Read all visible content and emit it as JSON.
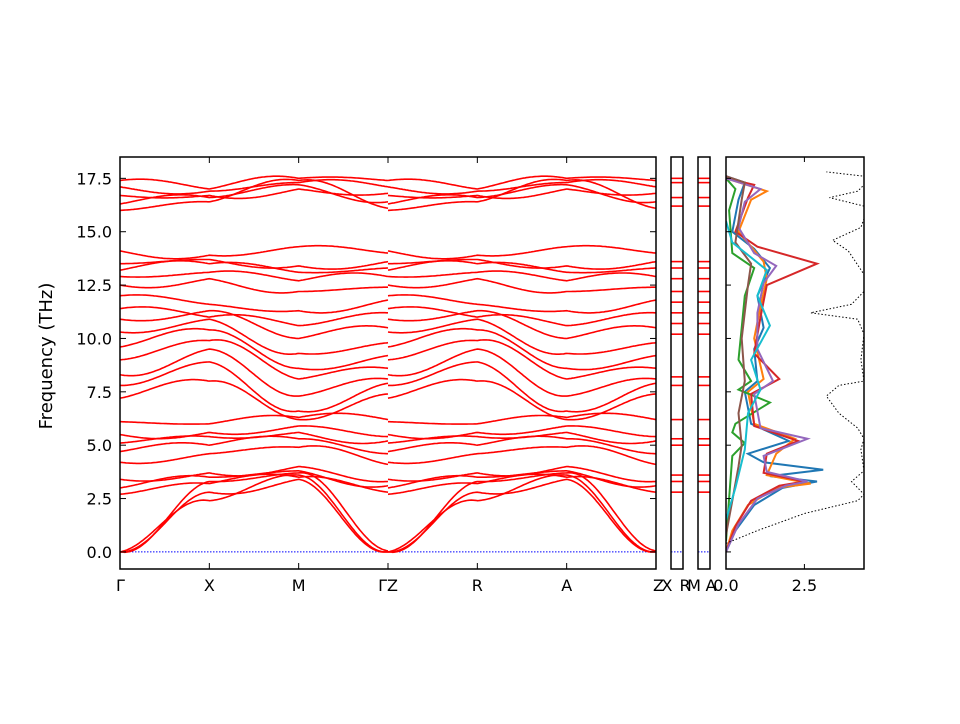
{
  "chart_data": [
    {
      "type": "line",
      "panel": "band-structure",
      "ylabel": "Frequency (THz)",
      "ylim": [
        -0.8,
        18.5
      ],
      "yticks": [
        "0.0",
        "2.5",
        "5.0",
        "7.5",
        "10.0",
        "12.5",
        "15.0",
        "17.5"
      ],
      "segments": [
        {
          "labels": [
            "Γ",
            "X",
            "M",
            "Γ"
          ],
          "length": 3.0
        },
        {
          "labels": [
            "Z",
            "R",
            "A",
            "Z"
          ],
          "length": 3.0
        },
        {
          "labels": [
            "X",
            "R"
          ],
          "length": 1.0
        },
        {
          "labels": [
            "M",
            "A"
          ],
          "length": 1.0
        }
      ],
      "kpoint_labels": [
        "Γ",
        "X",
        "M",
        "ΓZ",
        "R",
        "A",
        "Z",
        "X",
        "R",
        "M",
        "A"
      ],
      "line_color": "#ff0000",
      "zero_line_color": "#0000ff",
      "series": [
        {
          "values": [
            0.0,
            2.4,
            3.6,
            0.0
          ]
        },
        {
          "values": [
            0.0,
            2.8,
            3.4,
            0.0
          ]
        },
        {
          "values": [
            0.0,
            3.3,
            3.7,
            0.05
          ]
        },
        {
          "values": [
            2.7,
            3.2,
            3.5,
            2.8
          ]
        },
        {
          "values": [
            3.0,
            3.5,
            3.8,
            3.1
          ]
        },
        {
          "values": [
            3.4,
            3.7,
            4.0,
            3.3
          ]
        },
        {
          "values": [
            4.2,
            4.6,
            4.9,
            4.1
          ]
        },
        {
          "values": [
            4.7,
            5.0,
            5.3,
            4.6
          ]
        },
        {
          "values": [
            5.1,
            5.4,
            5.6,
            5.2
          ]
        },
        {
          "values": [
            5.5,
            5.6,
            5.9,
            5.4
          ]
        },
        {
          "values": [
            6.1,
            6.0,
            6.3,
            6.2
          ]
        },
        {
          "values": [
            7.2,
            8.0,
            6.2,
            7.4
          ]
        },
        {
          "values": [
            7.8,
            8.9,
            6.6,
            7.9
          ]
        },
        {
          "values": [
            8.3,
            9.5,
            7.3,
            8.1
          ]
        },
        {
          "values": [
            9.0,
            9.9,
            8.1,
            8.6
          ]
        },
        {
          "values": [
            9.6,
            10.4,
            8.6,
            9.2
          ]
        },
        {
          "values": [
            10.3,
            10.9,
            9.3,
            9.8
          ]
        },
        {
          "values": [
            10.9,
            11.3,
            10.0,
            10.5
          ]
        },
        {
          "values": [
            11.4,
            11.0,
            10.6,
            11.2
          ]
        },
        {
          "values": [
            12.0,
            11.6,
            11.3,
            11.8
          ]
        },
        {
          "values": [
            12.5,
            12.8,
            12.2,
            12.4
          ]
        },
        {
          "values": [
            12.9,
            13.1,
            12.7,
            12.9
          ]
        },
        {
          "values": [
            13.2,
            13.5,
            13.1,
            13.3
          ]
        },
        {
          "values": [
            13.5,
            13.7,
            13.4,
            13.6
          ]
        },
        {
          "values": [
            14.1,
            13.9,
            14.3,
            14.0
          ]
        },
        {
          "values": [
            16.0,
            16.4,
            17.4,
            16.1
          ]
        },
        {
          "values": [
            16.3,
            16.6,
            17.2,
            16.4
          ]
        },
        {
          "values": [
            16.7,
            16.7,
            17.0,
            16.8
          ]
        },
        {
          "values": [
            17.1,
            16.9,
            17.3,
            17.1
          ]
        },
        {
          "values": [
            17.4,
            17.0,
            17.5,
            17.4
          ]
        }
      ],
      "side_levels": [
        2.8,
        3.3,
        3.6,
        5.0,
        5.3,
        6.2,
        7.8,
        8.2,
        10.2,
        10.7,
        11.2,
        11.7,
        12.2,
        12.8,
        13.3,
        13.6,
        16.2,
        16.6,
        17.3,
        17.5
      ]
    },
    {
      "type": "line",
      "panel": "density-of-states",
      "xlim": [
        0.0,
        4.4
      ],
      "xticks": [
        "0.0",
        "2.5"
      ],
      "ylim": [
        -0.8,
        18.5
      ],
      "series": [
        {
          "color": "#1f77b4",
          "points": [
            [
              0.0,
              0.0
            ],
            [
              0.3,
              1.0
            ],
            [
              0.9,
              2.2
            ],
            [
              1.8,
              3.0
            ],
            [
              2.9,
              3.3
            ],
            [
              1.4,
              3.55
            ],
            [
              3.1,
              3.85
            ],
            [
              1.2,
              4.2
            ],
            [
              0.7,
              4.6
            ],
            [
              2.0,
              5.2
            ],
            [
              0.8,
              6.0
            ],
            [
              0.6,
              7.5
            ],
            [
              1.0,
              8.0
            ],
            [
              0.9,
              9.5
            ],
            [
              1.2,
              10.5
            ],
            [
              1.0,
              12.0
            ],
            [
              1.4,
              13.3
            ],
            [
              0.9,
              14.2
            ],
            [
              0.2,
              15.0
            ],
            [
              0.4,
              16.5
            ],
            [
              0.6,
              17.3
            ],
            [
              0.0,
              17.6
            ]
          ]
        },
        {
          "color": "#ff7f0e",
          "points": [
            [
              0.0,
              0.0
            ],
            [
              0.2,
              1.0
            ],
            [
              0.7,
              2.2
            ],
            [
              1.6,
              3.0
            ],
            [
              2.7,
              3.2
            ],
            [
              1.3,
              3.6
            ],
            [
              1.6,
              4.6
            ],
            [
              2.2,
              5.3
            ],
            [
              0.9,
              6.0
            ],
            [
              0.7,
              7.5
            ],
            [
              1.2,
              8.1
            ],
            [
              0.9,
              10.0
            ],
            [
              1.1,
              11.5
            ],
            [
              1.3,
              12.8
            ],
            [
              1.2,
              13.6
            ],
            [
              0.4,
              15.0
            ],
            [
              0.8,
              16.5
            ],
            [
              1.3,
              16.9
            ],
            [
              0.0,
              17.5
            ]
          ]
        },
        {
          "color": "#2ca02c",
          "points": [
            [
              0.0,
              0.5
            ],
            [
              0.1,
              2.5
            ],
            [
              0.2,
              4.5
            ],
            [
              0.6,
              5.1
            ],
            [
              0.2,
              5.6
            ],
            [
              0.3,
              6.0
            ],
            [
              1.4,
              7.0
            ],
            [
              0.4,
              7.6
            ],
            [
              0.8,
              8.0
            ],
            [
              0.4,
              9.0
            ],
            [
              0.5,
              10.5
            ],
            [
              0.6,
              12.0
            ],
            [
              0.9,
              13.3
            ],
            [
              0.2,
              14.0
            ],
            [
              0.1,
              16.0
            ],
            [
              0.3,
              17.0
            ],
            [
              0.0,
              17.5
            ]
          ]
        },
        {
          "color": "#d62728",
          "points": [
            [
              0.0,
              0.0
            ],
            [
              0.3,
              1.2
            ],
            [
              0.8,
              2.4
            ],
            [
              1.7,
              3.1
            ],
            [
              2.5,
              3.3
            ],
            [
              1.2,
              3.7
            ],
            [
              1.3,
              4.6
            ],
            [
              2.3,
              5.2
            ],
            [
              0.9,
              5.9
            ],
            [
              0.8,
              7.4
            ],
            [
              1.7,
              8.1
            ],
            [
              0.9,
              9.3
            ],
            [
              1.1,
              11.0
            ],
            [
              1.3,
              12.5
            ],
            [
              2.9,
              13.5
            ],
            [
              1.0,
              14.3
            ],
            [
              0.3,
              15.0
            ],
            [
              0.7,
              16.6
            ],
            [
              0.9,
              17.2
            ],
            [
              0.0,
              17.5
            ]
          ]
        },
        {
          "color": "#9467bd",
          "points": [
            [
              0.0,
              0.0
            ],
            [
              0.4,
              1.3
            ],
            [
              1.0,
              2.5
            ],
            [
              1.9,
              3.1
            ],
            [
              2.6,
              3.3
            ],
            [
              1.3,
              3.75
            ],
            [
              1.2,
              4.5
            ],
            [
              2.6,
              5.3
            ],
            [
              1.1,
              5.8
            ],
            [
              0.9,
              7.4
            ],
            [
              1.5,
              8.0
            ],
            [
              1.0,
              9.5
            ],
            [
              1.0,
              11.2
            ],
            [
              1.2,
              12.6
            ],
            [
              1.6,
              13.4
            ],
            [
              0.9,
              14.0
            ],
            [
              0.4,
              15.2
            ],
            [
              0.6,
              16.4
            ],
            [
              1.1,
              17.0
            ],
            [
              0.0,
              17.5
            ]
          ]
        },
        {
          "color": "#8c564b",
          "points": [
            [
              0.0,
              0.8
            ],
            [
              0.2,
              2.4
            ],
            [
              0.4,
              4.0
            ],
            [
              0.5,
              5.0
            ],
            [
              0.4,
              6.5
            ],
            [
              0.6,
              8.0
            ],
            [
              0.5,
              10.0
            ],
            [
              0.7,
              12.5
            ],
            [
              0.8,
              13.5
            ],
            [
              0.3,
              14.5
            ],
            [
              0.5,
              16.5
            ],
            [
              0.6,
              17.3
            ],
            [
              0.0,
              17.6
            ]
          ]
        },
        {
          "color": "#17becf",
          "points": [
            [
              0.0,
              1.5
            ],
            [
              0.3,
              3.0
            ],
            [
              0.6,
              4.8
            ],
            [
              0.7,
              6.5
            ],
            [
              1.1,
              7.6
            ],
            [
              0.8,
              9.0
            ],
            [
              1.4,
              10.6
            ],
            [
              1.0,
              12.0
            ],
            [
              1.3,
              13.2
            ],
            [
              0.2,
              14.5
            ],
            [
              0.0,
              15.5
            ]
          ]
        },
        {
          "color": "#000000",
          "dashed": true,
          "points": [
            [
              0.0,
              0.4
            ],
            [
              1.0,
              1.0
            ],
            [
              2.5,
              1.8
            ],
            [
              4.2,
              2.4
            ],
            [
              4.4,
              2.7
            ],
            [
              4.0,
              3.3
            ],
            [
              4.4,
              3.8
            ],
            [
              4.3,
              4.8
            ],
            [
              4.4,
              5.3
            ],
            [
              4.2,
              5.8
            ],
            [
              3.6,
              6.5
            ],
            [
              3.2,
              7.3
            ],
            [
              3.6,
              7.8
            ],
            [
              4.4,
              8.0
            ],
            [
              4.3,
              9.0
            ],
            [
              4.4,
              10.2
            ],
            [
              4.2,
              10.9
            ],
            [
              2.7,
              11.2
            ],
            [
              4.0,
              11.6
            ],
            [
              4.4,
              12.2
            ],
            [
              4.4,
              13.0
            ],
            [
              3.9,
              14.1
            ],
            [
              3.4,
              14.6
            ],
            [
              4.3,
              15.2
            ],
            [
              4.4,
              15.6
            ],
            [
              4.4,
              16.2
            ],
            [
              3.3,
              16.6
            ],
            [
              4.2,
              16.9
            ],
            [
              4.4,
              17.2
            ],
            [
              4.4,
              17.6
            ],
            [
              3.2,
              17.8
            ]
          ]
        }
      ]
    }
  ]
}
